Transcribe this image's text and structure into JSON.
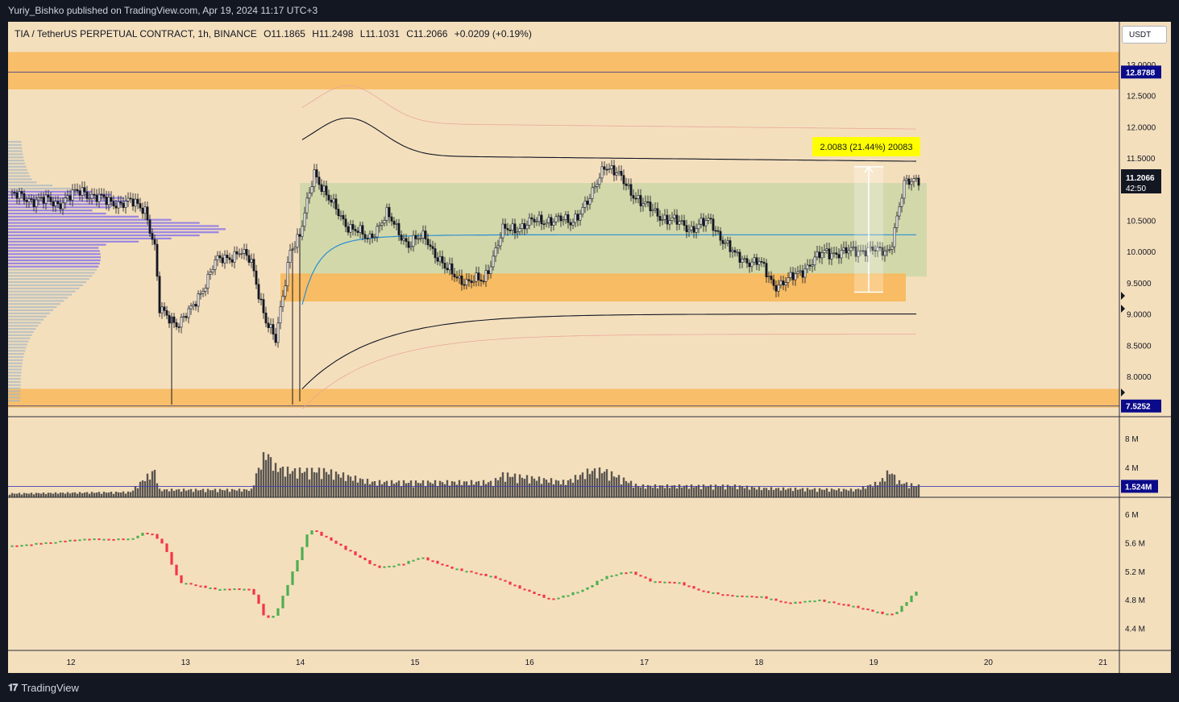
{
  "header": {
    "published": "Yuriy_Bishko published on TradingView.com, Apr 19, 2024 11:17 UTC+3"
  },
  "legend": {
    "symbol": "TIA / TetherUS PERPETUAL CONTRACT, 1h, BINANCE",
    "open": "O11.1865",
    "high": "H11.2498",
    "low": "L11.1031",
    "close": "C11.2066",
    "change": "+0.0209 (+0.19%)"
  },
  "currency_button": "USDT",
  "footer": {
    "brand": "TradingView"
  },
  "colors": {
    "background": "#f4dfbd",
    "zone": "#f8b85a",
    "range_fill": "#cdd7a8",
    "profile": "#7b68ee",
    "profile_light": "#a7b6c2",
    "vwap": "#2a8fd0",
    "candle_up": "#ffffff",
    "candle_down": "#131722",
    "cvd_up": "#4caf50",
    "cvd_down": "#f23645",
    "price_tag": "#0a0a8a",
    "measure_label": "#ffff00"
  },
  "price_axis": {
    "ticks": [
      "13.0000",
      "12.5000",
      "12.0000",
      "11.5000",
      "11.0000",
      "10.5000",
      "10.0000",
      "9.5000",
      "9.0000",
      "8.5000",
      "8.0000"
    ],
    "last_price": "11.2066",
    "countdown": "42:50",
    "resistance_label": "12.8788",
    "support_label": "7.5252"
  },
  "volume_axis": {
    "ticks": [
      "8 M",
      "4 M"
    ],
    "current": "1.524M"
  },
  "cvd_axis": {
    "ticks": [
      "6 M",
      "5.6 M",
      "5.2 M",
      "4.8 M",
      "4.4 M"
    ]
  },
  "time_axis": {
    "ticks": [
      "12",
      "13",
      "14",
      "15",
      "16",
      "17",
      "18",
      "19",
      "20",
      "21"
    ]
  },
  "measure": {
    "label": "2.0083 (21.44%) 20083"
  },
  "chart_data": {
    "type": "candlestick",
    "symbol": "TIA / TetherUS PERPETUAL CONTRACT",
    "interval": "1h",
    "exchange": "BINANCE",
    "ohlc_last": {
      "open": 11.1865,
      "high": 11.2498,
      "low": 11.1031,
      "close": 11.2066
    },
    "x_axis": [
      "12",
      "13",
      "14",
      "15",
      "16",
      "17",
      "18",
      "19",
      "20",
      "21"
    ],
    "ylim": [
      7.5,
      13.3
    ],
    "resistance_zone": [
      12.6,
      13.2
    ],
    "resistance_line": 12.8788,
    "support_zone": [
      7.5,
      7.8
    ],
    "support_line": 7.5252,
    "demand_zone": [
      9.2,
      9.65
    ],
    "range_box": [
      9.6,
      11.1
    ],
    "measure": {
      "from": 9.35,
      "to": 11.36,
      "change": 2.0083,
      "percent": 21.44
    },
    "volume_current_M": 1.524,
    "price_anchors": [
      [
        0,
        10.9
      ],
      [
        20,
        10.78
      ],
      [
        30,
        10.98
      ],
      [
        40,
        10.8
      ],
      [
        50,
        10.78
      ],
      [
        56,
        10.7
      ],
      [
        60,
        10.05
      ],
      [
        62,
        9.05
      ],
      [
        70,
        8.85
      ],
      [
        75,
        9.05
      ],
      [
        85,
        9.82
      ],
      [
        95,
        10.0
      ],
      [
        100,
        9.82
      ],
      [
        106,
        8.9
      ],
      [
        110,
        8.55
      ],
      [
        116,
        10.06
      ],
      [
        120,
        10.22
      ],
      [
        126,
        11.3
      ],
      [
        132,
        10.82
      ],
      [
        140,
        10.42
      ],
      [
        148,
        10.2
      ],
      [
        156,
        10.58
      ],
      [
        165,
        10.12
      ],
      [
        172,
        10.24
      ],
      [
        180,
        9.72
      ],
      [
        190,
        9.5
      ],
      [
        196,
        9.55
      ],
      [
        204,
        10.32
      ],
      [
        212,
        10.42
      ],
      [
        222,
        10.52
      ],
      [
        232,
        10.48
      ],
      [
        240,
        10.82
      ],
      [
        246,
        11.42
      ],
      [
        254,
        11.12
      ],
      [
        262,
        10.75
      ],
      [
        272,
        10.52
      ],
      [
        282,
        10.38
      ],
      [
        290,
        10.48
      ],
      [
        300,
        9.92
      ],
      [
        310,
        9.82
      ],
      [
        316,
        9.48
      ],
      [
        322,
        9.52
      ],
      [
        330,
        9.78
      ],
      [
        338,
        10.0
      ],
      [
        346,
        9.98
      ],
      [
        354,
        10.05
      ],
      [
        360,
        9.98
      ],
      [
        364,
        10.05
      ],
      [
        370,
        11.05
      ],
      [
        376,
        11.2
      ]
    ],
    "volume_anchors_M": [
      [
        0,
        0.5
      ],
      [
        50,
        0.7
      ],
      [
        56,
        2.5
      ],
      [
        60,
        3.5
      ],
      [
        62,
        1.0
      ],
      [
        100,
        1.0
      ],
      [
        102,
        3.0
      ],
      [
        106,
        6.0
      ],
      [
        110,
        4.0
      ],
      [
        116,
        3.5
      ],
      [
        130,
        3.5
      ],
      [
        150,
        2.0
      ],
      [
        200,
        2.0
      ],
      [
        204,
        3.0
      ],
      [
        230,
        2.0
      ],
      [
        240,
        3.5
      ],
      [
        246,
        3.5
      ],
      [
        260,
        1.5
      ],
      [
        300,
        1.5
      ],
      [
        310,
        1.2
      ],
      [
        350,
        1.0
      ],
      [
        360,
        2.0
      ],
      [
        364,
        3.5
      ],
      [
        368,
        2.0
      ],
      [
        375,
        1.524
      ]
    ],
    "cvd_anchors_M": [
      [
        0,
        5.55
      ],
      [
        30,
        5.65
      ],
      [
        50,
        5.65
      ],
      [
        56,
        5.75
      ],
      [
        60,
        5.7
      ],
      [
        64,
        5.55
      ],
      [
        70,
        5.05
      ],
      [
        85,
        4.95
      ],
      [
        100,
        4.95
      ],
      [
        106,
        4.52
      ],
      [
        110,
        4.6
      ],
      [
        116,
        5.1
      ],
      [
        124,
        5.8
      ],
      [
        132,
        5.65
      ],
      [
        142,
        5.45
      ],
      [
        152,
        5.25
      ],
      [
        162,
        5.3
      ],
      [
        170,
        5.4
      ],
      [
        182,
        5.25
      ],
      [
        200,
        5.12
      ],
      [
        212,
        4.95
      ],
      [
        224,
        4.8
      ],
      [
        238,
        4.95
      ],
      [
        246,
        5.12
      ],
      [
        256,
        5.2
      ],
      [
        266,
        5.05
      ],
      [
        276,
        5.05
      ],
      [
        286,
        4.92
      ],
      [
        300,
        4.85
      ],
      [
        310,
        4.85
      ],
      [
        322,
        4.75
      ],
      [
        334,
        4.8
      ],
      [
        350,
        4.7
      ],
      [
        362,
        4.6
      ],
      [
        366,
        4.6
      ],
      [
        375,
        4.92
      ]
    ]
  }
}
